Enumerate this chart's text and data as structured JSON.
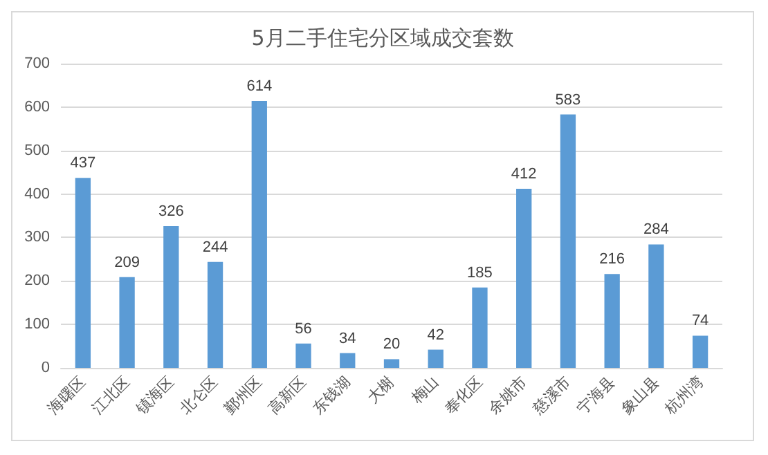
{
  "chart_data": {
    "type": "bar",
    "title": "5月二手住宅分区域成交套数",
    "categories": [
      "海曙区",
      "江北区",
      "镇海区",
      "北仑区",
      "鄞州区",
      "高新区",
      "东钱湖",
      "大榭",
      "梅山",
      "奉化区",
      "余姚市",
      "慈溪市",
      "宁海县",
      "象山县",
      "杭州湾"
    ],
    "values": [
      437,
      209,
      326,
      244,
      614,
      56,
      34,
      20,
      42,
      185,
      412,
      583,
      216,
      284,
      74
    ],
    "color": "#5b9bd5",
    "ylim": [
      0,
      700
    ],
    "yticks": [
      0,
      100,
      200,
      300,
      400,
      500,
      600,
      700
    ],
    "grid": "y",
    "data_labels": true
  }
}
